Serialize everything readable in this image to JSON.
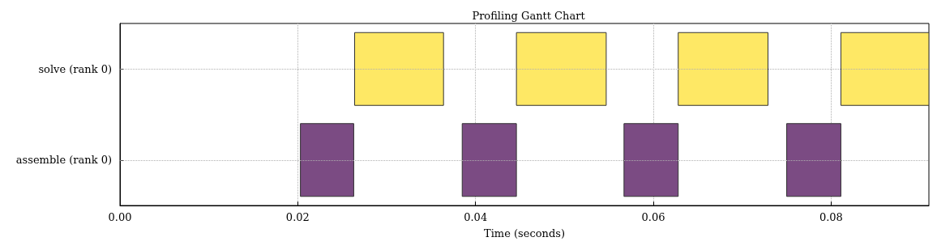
{
  "chart_data": {
    "type": "bar",
    "orientation": "horizontal",
    "title": "Profiling Gantt Chart",
    "xlabel": "Time (seconds)",
    "categories": [
      "solve (rank 0)",
      "assemble (rank 0)"
    ],
    "series": [
      {
        "values": [
          0.01,
          0.006
        ],
        "base": [
          0.0264,
          0.0203
        ],
        "colors": [
          "#fee865",
          "#7b4b83"
        ]
      },
      {
        "values": [
          0.0101,
          0.0061
        ],
        "base": [
          0.0446,
          0.0385
        ],
        "colors": [
          "#fee865",
          "#7b4b83"
        ]
      },
      {
        "values": [
          0.0101,
          0.0061
        ],
        "base": [
          0.0628,
          0.0567
        ],
        "colors": [
          "#fee865",
          "#7b4b83"
        ]
      },
      {
        "values": [
          0.0099,
          0.0061
        ],
        "base": [
          0.0811,
          0.075
        ],
        "colors": [
          "#fee865",
          "#7b4b83"
        ]
      }
    ],
    "xlim": [
      0,
      0.091
    ],
    "xticks": [
      {
        "value": 0,
        "label": "0.00"
      },
      0.02,
      0.04,
      0.06,
      0.08
    ],
    "grid": true
  }
}
